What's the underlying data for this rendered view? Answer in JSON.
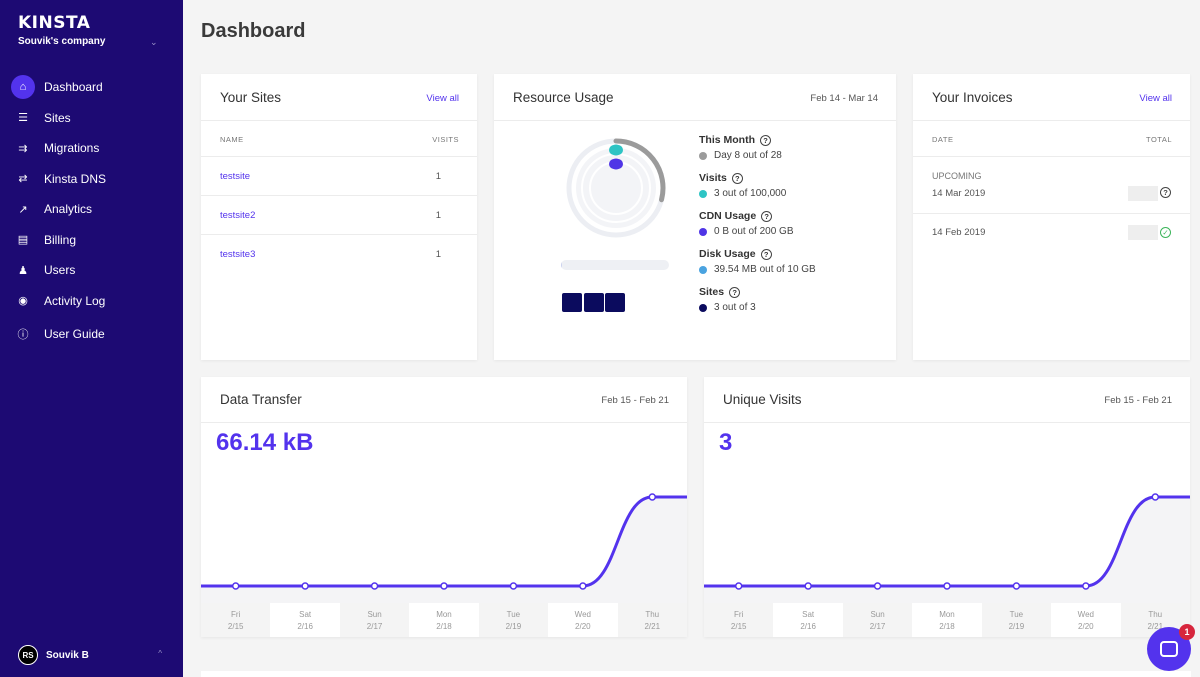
{
  "brand": "KINSTA",
  "company": "Souvik's company",
  "nav": [
    {
      "label": "Dashboard",
      "icon": "home-icon",
      "active": true
    },
    {
      "label": "Sites",
      "icon": "layers-icon"
    },
    {
      "label": "Migrations",
      "icon": "migrate-icon"
    },
    {
      "label": "Kinsta DNS",
      "icon": "dns-icon"
    },
    {
      "label": "Analytics",
      "icon": "trend-icon"
    },
    {
      "label": "Billing",
      "icon": "card-icon"
    },
    {
      "label": "Users",
      "icon": "add-user-icon"
    },
    {
      "label": "Activity Log",
      "icon": "eye-icon"
    },
    {
      "label": "User Guide",
      "icon": "help-icon"
    }
  ],
  "user": {
    "initials": "RS",
    "name": "Souvik B"
  },
  "page_title": "Dashboard",
  "sites_card": {
    "title": "Your Sites",
    "link": "View all",
    "col_name": "NAME",
    "col_visits": "VISITS",
    "rows": [
      {
        "name": "testsite",
        "visits": "1"
      },
      {
        "name": "testsite2",
        "visits": "1"
      },
      {
        "name": "testsite3",
        "visits": "1"
      }
    ]
  },
  "resource_card": {
    "title": "Resource Usage",
    "date_range": "Feb 14 - Mar 14",
    "items": [
      {
        "label": "This Month",
        "value": "Day 8 out of 28",
        "color": "#9b9b9b"
      },
      {
        "label": "Visits",
        "value": "3 out of 100,000",
        "color": "#2ec4c4"
      },
      {
        "label": "CDN Usage",
        "value": "0 B out of 200 GB",
        "color": "#4f35e6"
      },
      {
        "label": "Disk Usage",
        "value": "39.54 MB out of 10 GB",
        "color": "#4aa3e0"
      },
      {
        "label": "Sites",
        "value": "3 out of 3",
        "color": "#0b0b5e"
      }
    ],
    "month_progress": 0.29,
    "disk_progress": 0.004,
    "sites_used": 3
  },
  "invoices_card": {
    "title": "Your Invoices",
    "link": "View all",
    "col_date": "DATE",
    "col_total": "TOTAL",
    "upcoming_label": "UPCOMING",
    "upcoming_date": "14 Mar 2019",
    "paid_date": "14 Feb 2019"
  },
  "transfer_card": {
    "title": "Data Transfer",
    "date_range": "Feb 15 - Feb 21",
    "value": "66.14 kB"
  },
  "visits_card": {
    "title": "Unique Visits",
    "date_range": "Feb 15 - Feb 21",
    "value": "3"
  },
  "chart_data": [
    {
      "type": "area",
      "title": "Data Transfer",
      "categories": [
        "Fri 2/15",
        "Sat 2/16",
        "Sun 2/17",
        "Mon 2/18",
        "Tue 2/19",
        "Wed 2/20",
        "Thu 2/21"
      ],
      "days": [
        [
          "Fri",
          "2/15"
        ],
        [
          "Sat",
          "2/16"
        ],
        [
          "Sun",
          "2/17"
        ],
        [
          "Mon",
          "2/18"
        ],
        [
          "Tue",
          "2/19"
        ],
        [
          "Wed",
          "2/20"
        ],
        [
          "Thu",
          "2/21"
        ]
      ],
      "values": [
        0,
        0,
        0,
        0,
        0,
        0,
        66.14
      ],
      "color": "#5333ed"
    },
    {
      "type": "area",
      "title": "Unique Visits",
      "categories": [
        "Fri 2/15",
        "Sat 2/16",
        "Sun 2/17",
        "Mon 2/18",
        "Tue 2/19",
        "Wed 2/20",
        "Thu 2/21"
      ],
      "days": [
        [
          "Fri",
          "2/15"
        ],
        [
          "Sat",
          "2/16"
        ],
        [
          "Sun",
          "2/17"
        ],
        [
          "Mon",
          "2/18"
        ],
        [
          "Tue",
          "2/19"
        ],
        [
          "Wed",
          "2/20"
        ],
        [
          "Thu",
          "2/21"
        ]
      ],
      "values": [
        0,
        0,
        0,
        0,
        0,
        0,
        3
      ],
      "color": "#5333ed"
    }
  ],
  "chat_badge": "1"
}
